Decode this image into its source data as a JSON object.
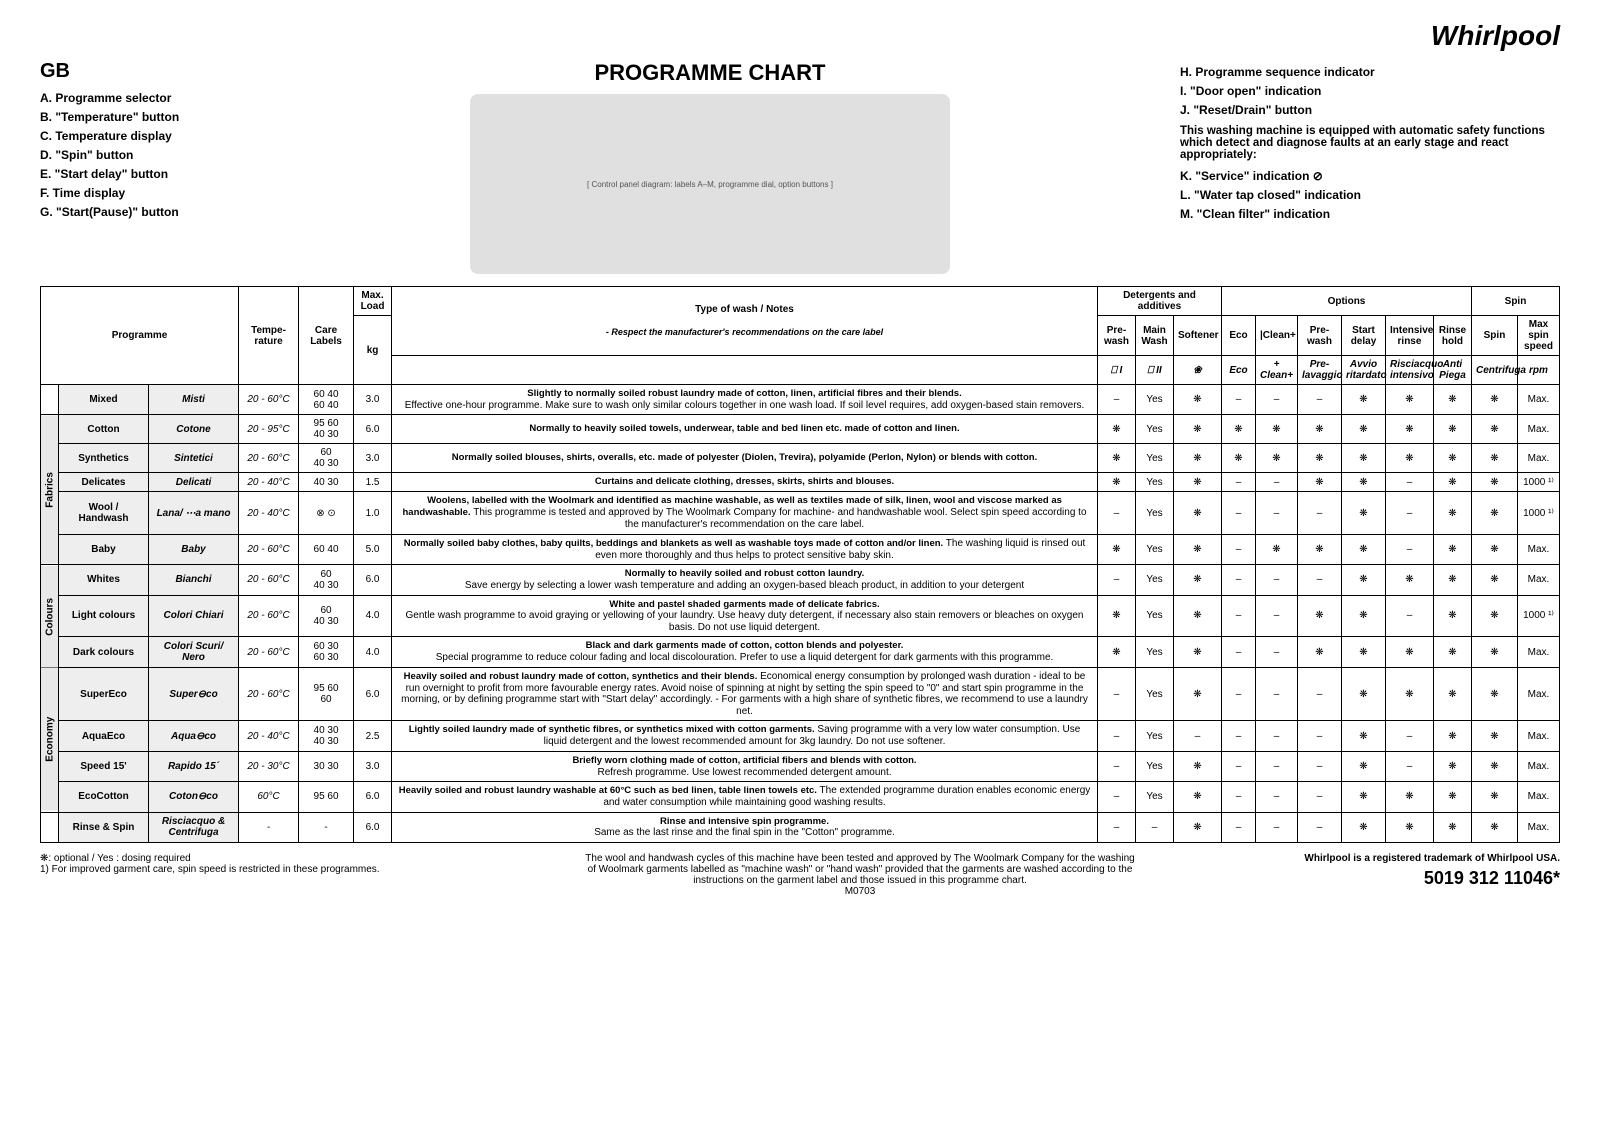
{
  "brand": "Whirlpool",
  "country": "GB",
  "title": "PROGRAMME CHART",
  "legend_left": [
    "A. Programme selector",
    "B. \"Temperature\" button",
    "C. Temperature display",
    "D. \"Spin\" button",
    "E. \"Start delay\" button",
    "F. Time display",
    "G. \"Start(Pause)\" button"
  ],
  "legend_right": {
    "items_top": [
      "H. Programme sequence indicator",
      "I.  \"Door open\" indication",
      "J.  \"Reset/Drain\" button"
    ],
    "note": "This washing machine is equipped with automatic safety functions which detect and diagnose faults at an early stage and react appropriately:",
    "items_bottom": [
      "K. \"Service\" indication ⊘",
      "L.  \"Water tap closed\" indication",
      "M. \"Clean filter\" indication"
    ]
  },
  "diagram_placeholder": "[ Control panel diagram: labels A–M, programme dial, option buttons ]",
  "headers": {
    "programme": "Programme",
    "temp": "Tempe-rature",
    "care": "Care Labels",
    "maxload": "Max. Load",
    "maxload_unit": "kg",
    "notes_top": "Type of wash / Notes",
    "notes_sub": "- Respect the manufacturer's recommendations on the care label",
    "detergents": "Detergents and additives",
    "options": "Options",
    "spin_group": "Spin",
    "prewash": "Pre-wash",
    "mainwash": "Main Wash",
    "softener": "Softener",
    "eco": "Eco",
    "cleanplus": "|Clean+",
    "opt_prewash": "Pre-wash",
    "opt_startdelay": "Start delay",
    "opt_intrinse": "Intensive rinse",
    "opt_rinsehold": "Rinse hold",
    "spin": "Spin",
    "maxspin": "Max spin speed",
    "rpm": "rpm",
    "eco_it": "Eco",
    "cleanplus_it": "+ Clean+",
    "prewash_it": "Pre-lavaggio",
    "startdelay_it": "Avvio ritardato",
    "intrinse_it": "Risciacquo intensivo",
    "rinsehold_it": "Anti Piega",
    "spin_it": "Centrifuga"
  },
  "categories": {
    "fabrics": "Fabrics",
    "colours": "Colours",
    "economy": "Economy"
  },
  "rows": [
    {
      "cat": "",
      "en": "Mixed",
      "it": "Misti",
      "temp": "20 - 60°C",
      "care": "60 40\n60 40",
      "load": "3.0",
      "notes": "<b>Slightly to normally soiled robust laundry made of cotton, linen, artificial fibres and their blends.</b><br>Effective one-hour programme. Make sure to wash only similar colours together in one wash load. If soil level requires, add oxygen-based stain removers.",
      "d": [
        "–",
        "Yes",
        "❋",
        "–",
        "–",
        "–",
        "❋",
        "❋",
        "❋",
        "❋",
        "Max."
      ]
    },
    {
      "cat": "fabrics",
      "en": "Cotton",
      "it": "Cotone",
      "temp": "20 - 95°C",
      "care": "95 60\n40 30",
      "load": "6.0",
      "notes": "<b>Normally to heavily soiled towels, underwear, table and bed linen etc. made of cotton and linen.</b>",
      "d": [
        "❋",
        "Yes",
        "❋",
        "❋",
        "❋",
        "❋",
        "❋",
        "❋",
        "❋",
        "❋",
        "Max."
      ]
    },
    {
      "cat": "fabrics",
      "en": "Synthetics",
      "it": "Sintetici",
      "temp": "20 - 60°C",
      "care": "60\n40 30",
      "load": "3.0",
      "notes": "<b>Normally soiled blouses, shirts, overalls, etc. made of polyester (Diolen, Trevira), polyamide (Perlon, Nylon) or blends with cotton.</b>",
      "d": [
        "❋",
        "Yes",
        "❋",
        "❋",
        "❋",
        "❋",
        "❋",
        "❋",
        "❋",
        "❋",
        "Max."
      ]
    },
    {
      "cat": "fabrics",
      "en": "Delicates",
      "it": "Delicati",
      "temp": "20 - 40°C",
      "care": "40 30",
      "load": "1.5",
      "notes": "<b>Curtains and delicate clothing, dresses, skirts, shirts and blouses.</b>",
      "d": [
        "❋",
        "Yes",
        "❋",
        "–",
        "–",
        "❋",
        "❋",
        "–",
        "❋",
        "❋",
        "1000 ¹⁾"
      ]
    },
    {
      "cat": "fabrics",
      "en": "Wool / Handwash",
      "it": "Lana/ ⋯a mano",
      "temp": "20 - 40°C",
      "care": "⊗ ⊙",
      "load": "1.0",
      "notes": "<b>Woolens, labelled with the Woolmark and identified as machine washable, as well as textiles made of silk, linen, wool and viscose marked as handwashable.</b> This programme is tested and approved by The Woolmark Company for machine- and handwashable wool. Select spin speed according to the manufacturer's recommendation on the care label.",
      "d": [
        "–",
        "Yes",
        "❋",
        "–",
        "–",
        "–",
        "❋",
        "–",
        "❋",
        "❋",
        "1000 ¹⁾"
      ]
    },
    {
      "cat": "fabrics",
      "en": "Baby",
      "it": "Baby",
      "temp": "20 - 60°C",
      "care": "60 40",
      "load": "5.0",
      "notes": "<b>Normally soiled baby clothes, baby quilts, beddings and blankets as well as washable toys made of cotton and/or linen.</b> The washing liquid is rinsed out even more thoroughly and thus helps to protect sensitive baby skin.",
      "d": [
        "❋",
        "Yes",
        "❋",
        "–",
        "❋",
        "❋",
        "❋",
        "–",
        "❋",
        "❋",
        "Max."
      ]
    },
    {
      "cat": "colours",
      "en": "Whites",
      "it": "Bianchi",
      "temp": "20 - 60°C",
      "care": "60\n40 30",
      "load": "6.0",
      "notes": "<b>Normally to heavily soiled and robust cotton laundry.</b><br>Save energy by selecting a lower wash temperature and adding an oxygen-based bleach product, in addition to your detergent",
      "d": [
        "–",
        "Yes",
        "❋",
        "–",
        "–",
        "–",
        "❋",
        "❋",
        "❋",
        "❋",
        "Max."
      ]
    },
    {
      "cat": "colours",
      "en": "Light colours",
      "it": "Colori Chiari",
      "temp": "20 - 60°C",
      "care": "60\n40 30",
      "load": "4.0",
      "notes": "<b>White and pastel shaded garments made of delicate fabrics.</b><br>Gentle wash programme to avoid graying or yellowing of your laundry. Use heavy duty detergent, if necessary also stain removers or bleaches on oxygen basis. Do not use liquid detergent.",
      "d": [
        "❋",
        "Yes",
        "❋",
        "–",
        "–",
        "❋",
        "❋",
        "–",
        "❋",
        "❋",
        "1000 ¹⁾"
      ]
    },
    {
      "cat": "colours",
      "en": "Dark colours",
      "it": "Colori Scuri/ Nero",
      "temp": "20 - 60°C",
      "care": "60 30\n60 30",
      "load": "4.0",
      "notes": "<b>Black and dark garments made of cotton, cotton blends and polyester.</b><br>Special programme to reduce colour fading and local discolouration. Prefer to use a liquid detergent for dark garments with this programme.",
      "d": [
        "❋",
        "Yes",
        "❋",
        "–",
        "–",
        "❋",
        "❋",
        "❋",
        "❋",
        "❋",
        "Max."
      ]
    },
    {
      "cat": "economy",
      "en": "SuperEco",
      "it": "Super⊖co",
      "temp": "20 - 60°C",
      "care": "95 60\n60",
      "load": "6.0",
      "notes": "<b>Heavily soiled and robust laundry made of cotton, synthetics and their blends.</b> Economical energy consumption by prolonged wash duration - ideal to be run overnight to profit from more favourable energy rates. Avoid noise of spinning at night by setting the spin speed to \"0\" and start spin programme in the morning, or by defining programme start with \"Start delay\" accordingly. - For garments with a high share of synthetic fibres, we recommend to use a laundry net.",
      "d": [
        "–",
        "Yes",
        "❋",
        "–",
        "–",
        "–",
        "❋",
        "❋",
        "❋",
        "❋",
        "Max."
      ]
    },
    {
      "cat": "economy",
      "en": "AquaEco",
      "it": "Aqua⊖co",
      "temp": "20 - 40°C",
      "care": "40 30\n40 30",
      "load": "2.5",
      "notes": "<b>Lightly soiled laundry made of synthetic fibres, or synthetics mixed with cotton garments.</b> Saving programme with a very low water consumption. Use liquid detergent and the lowest recommended amount for 3kg laundry. Do not use softener.",
      "d": [
        "–",
        "Yes",
        "–",
        "–",
        "–",
        "–",
        "❋",
        "–",
        "❋",
        "❋",
        "Max."
      ]
    },
    {
      "cat": "economy",
      "en": "Speed 15'",
      "it": "Rapido 15´",
      "temp": "20 - 30°C",
      "care": "30 30",
      "load": "3.0",
      "notes": "<b>Briefly worn clothing made of cotton, artificial fibers and blends with cotton.</b><br>Refresh programme. Use lowest recommended detergent amount.",
      "d": [
        "–",
        "Yes",
        "❋",
        "–",
        "–",
        "–",
        "❋",
        "–",
        "❋",
        "❋",
        "Max."
      ]
    },
    {
      "cat": "economy",
      "en": "EcoCotton",
      "it": "Coton⊖co",
      "temp": "60°C",
      "care": "95 60",
      "load": "6.0",
      "notes": "<b>Heavily soiled and robust laundry washable at 60°C such as bed linen, table linen towels etc.</b> The extended programme duration enables economic energy and water consumption while maintaining good washing results.",
      "d": [
        "–",
        "Yes",
        "❋",
        "–",
        "–",
        "–",
        "❋",
        "❋",
        "❋",
        "❋",
        "Max."
      ]
    },
    {
      "cat": "",
      "en": "Rinse & Spin",
      "it": "Risciacquo & Centrifuga",
      "temp": "-",
      "care": "-",
      "load": "6.0",
      "notes": "<b>Rinse and intensive spin programme.</b><br>Same as the last rinse and the final spin in the \"Cotton\" programme.",
      "d": [
        "–",
        "–",
        "❋",
        "–",
        "–",
        "–",
        "❋",
        "❋",
        "❋",
        "❋",
        "Max."
      ]
    }
  ],
  "footnotes": {
    "left1": "❋:   optional / Yes : dosing required",
    "left2": "1)   For improved garment care, spin speed is restricted in these programmes.",
    "mid": "The wool and handwash cycles of this machine have been tested and approved by The Woolmark Company for the washing of Woolmark garments labelled as \"machine wash\" or \"hand wash\" provided that the garments are washed according to the instructions on the garment label and those issued in this programme chart.",
    "mid_code": "M0703",
    "right_note": "Whirlpool is a registered trademark of Whirlpool USA.",
    "right_serial": "5019 312 11046*"
  },
  "detergent_icons": [
    "⎕ I",
    "⎕ II",
    "❀"
  ]
}
